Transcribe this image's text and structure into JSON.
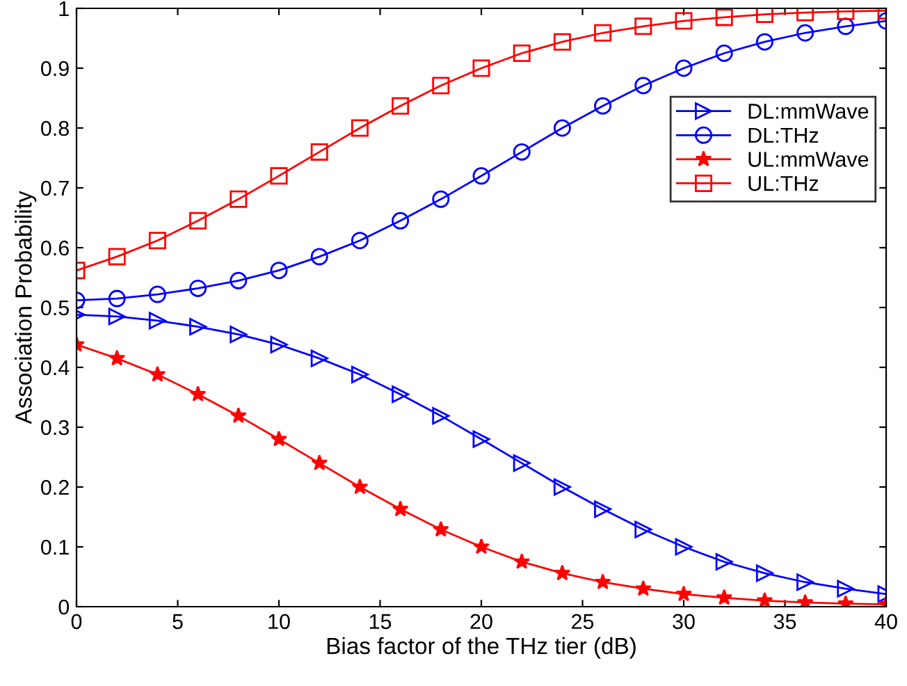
{
  "chart_data": {
    "type": "line",
    "xlabel": "Bias factor of the THz tier (dB)",
    "ylabel": "Association Probability",
    "x": [
      0,
      2,
      4,
      6,
      8,
      10,
      12,
      14,
      16,
      18,
      20,
      22,
      24,
      26,
      28,
      30,
      32,
      34,
      36,
      38,
      40
    ],
    "xlim": [
      0,
      40
    ],
    "xticks": [
      0,
      5,
      10,
      15,
      20,
      25,
      30,
      35,
      40
    ],
    "ylim": [
      0,
      1
    ],
    "yticks": [
      0,
      0.1,
      0.2,
      0.3,
      0.4,
      0.5,
      0.6,
      0.7,
      0.8,
      0.9,
      1
    ],
    "grid": false,
    "legend": "top right",
    "line_style": "solid",
    "series": [
      {
        "name": "DL:mmWave",
        "color": "#0000ff",
        "marker": "triangle",
        "values": [
          0.488,
          0.485,
          0.478,
          0.468,
          0.455,
          0.438,
          0.415,
          0.388,
          0.355,
          0.319,
          0.28,
          0.24,
          0.2,
          0.163,
          0.129,
          0.1,
          0.075,
          0.056,
          0.041,
          0.03,
          0.021
        ]
      },
      {
        "name": "DL:THz",
        "color": "#0000ff",
        "marker": "circle",
        "values": [
          0.512,
          0.515,
          0.522,
          0.532,
          0.545,
          0.562,
          0.585,
          0.612,
          0.645,
          0.681,
          0.72,
          0.76,
          0.8,
          0.837,
          0.871,
          0.9,
          0.925,
          0.944,
          0.959,
          0.97,
          0.979
        ]
      },
      {
        "name": "UL:mmWave",
        "color": "#ff0000",
        "marker": "star",
        "values": [
          0.438,
          0.415,
          0.388,
          0.355,
          0.319,
          0.28,
          0.24,
          0.2,
          0.163,
          0.129,
          0.1,
          0.075,
          0.056,
          0.041,
          0.03,
          0.021,
          0.015,
          0.01,
          0.007,
          0.005,
          0.004
        ]
      },
      {
        "name": "UL:THz",
        "color": "#ff0000",
        "marker": "square",
        "values": [
          0.562,
          0.585,
          0.612,
          0.645,
          0.681,
          0.72,
          0.76,
          0.8,
          0.837,
          0.871,
          0.9,
          0.925,
          0.944,
          0.959,
          0.97,
          0.979,
          0.985,
          0.99,
          0.993,
          0.995,
          0.996
        ]
      }
    ]
  }
}
